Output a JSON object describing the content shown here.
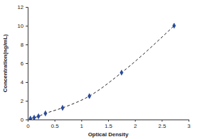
{
  "chart_data": {
    "type": "line",
    "x_label": "Optical Density",
    "y_label": "Concentration(ng/mL)",
    "x": [
      0.05,
      0.12,
      0.2,
      0.33,
      0.65,
      1.15,
      1.75,
      2.73
    ],
    "values": [
      0.1,
      0.2,
      0.35,
      0.65,
      1.25,
      2.5,
      5,
      10
    ],
    "xlim": [
      0,
      3
    ],
    "xticks": [
      0,
      0.5,
      1,
      1.5,
      2,
      2.5,
      3
    ],
    "ylim": [
      0,
      12
    ],
    "yticks": [
      0,
      2,
      4,
      6,
      8,
      10,
      12
    ],
    "color": "#2b4c9b",
    "marker": "diamond",
    "line_style": "dashed",
    "grid": false
  }
}
